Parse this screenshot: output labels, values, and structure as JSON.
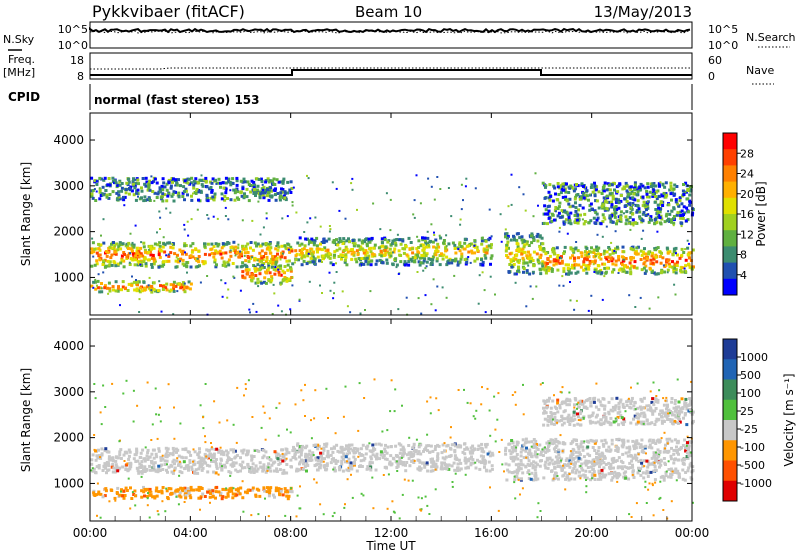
{
  "header": {
    "station": "Pykkvibaer (fitACF)",
    "beam": "Beam 10",
    "date": "13/May/2013"
  },
  "top_panel": {
    "left_label": "N.Sky",
    "right_label": "N.Search",
    "left_ticks": [
      "10^5",
      "10^0"
    ],
    "right_ticks": [
      "10^5",
      "10^0"
    ]
  },
  "freq_panel": {
    "left_label_1": "Freq.",
    "left_label_2": "[MHz]",
    "right_label": "Nave",
    "left_ticks": [
      "18",
      "8"
    ],
    "right_ticks": [
      "60",
      "0"
    ]
  },
  "cpid": {
    "label": "CPID",
    "value": "normal (fast stereo) 153"
  },
  "x_axis": {
    "title": "Time UT",
    "ticks": [
      "00:00",
      "04:00",
      "08:00",
      "12:00",
      "16:00",
      "20:00",
      "00:00"
    ]
  },
  "chart_data": [
    {
      "type": "heatmap",
      "panel": "power",
      "ylabel": "Slant Range [km]",
      "yticks": [
        1000,
        2000,
        3000,
        4000
      ],
      "ylim": [
        180,
        4590
      ],
      "xlim_hours": [
        0,
        24
      ],
      "colorbar": {
        "label": "Power [dB]",
        "ticks": [
          "28",
          "24",
          "20",
          "16",
          "12",
          "8",
          "4"
        ],
        "colors": [
          "#ff0000",
          "#ff4000",
          "#ff8000",
          "#ffb000",
          "#e0e000",
          "#a0d020",
          "#60b040",
          "#3c8c70",
          "#2050b0",
          "#0000ff"
        ]
      },
      "regions": [
        {
          "t": [
            0,
            8
          ],
          "range": [
            1250,
            1800
          ],
          "level": "high"
        },
        {
          "t": [
            0,
            4
          ],
          "range": [
            700,
            950
          ],
          "level": "high"
        },
        {
          "t": [
            6,
            8
          ],
          "range": [
            900,
            1300
          ],
          "level": "high"
        },
        {
          "t": [
            8,
            16
          ],
          "range": [
            1300,
            1900
          ],
          "level": "medium"
        },
        {
          "t": [
            16.5,
            18
          ],
          "range": [
            1100,
            2000
          ],
          "level": "medium"
        },
        {
          "t": [
            18,
            24
          ],
          "range": [
            1100,
            1700
          ],
          "level": "high"
        },
        {
          "t": [
            18,
            24
          ],
          "range": [
            2200,
            3100
          ],
          "level": "low"
        },
        {
          "t": [
            0,
            8
          ],
          "range": [
            2700,
            3200
          ],
          "level": "low"
        }
      ]
    },
    {
      "type": "heatmap",
      "panel": "velocity",
      "ylabel": "Slant Range [km]",
      "yticks": [
        1000,
        2000,
        3000,
        4000
      ],
      "ylim": [
        180,
        4590
      ],
      "xlim_hours": [
        0,
        24
      ],
      "colorbar": {
        "label": "Velocity [m s⁻¹]",
        "ticks": [
          "1000",
          "500",
          "100",
          "25",
          "-25",
          "-100",
          "-500",
          "-1000"
        ],
        "colors": [
          "#1e3c96",
          "#2064b4",
          "#3c8c5a",
          "#50c03c",
          "#c8c8c8",
          "#ff9600",
          "#ff5000",
          "#e00000"
        ]
      },
      "regions": [
        {
          "t": [
            0,
            8
          ],
          "range": [
            1250,
            1800
          ],
          "level": "ground"
        },
        {
          "t": [
            0,
            8
          ],
          "range": [
            700,
            950
          ],
          "level": "away"
        },
        {
          "t": [
            8,
            16
          ],
          "range": [
            1300,
            1900
          ],
          "level": "ground"
        },
        {
          "t": [
            16.5,
            24
          ],
          "range": [
            1100,
            2000
          ],
          "level": "ground"
        },
        {
          "t": [
            18,
            24
          ],
          "range": [
            2300,
            2900
          ],
          "level": "ground"
        }
      ]
    }
  ]
}
